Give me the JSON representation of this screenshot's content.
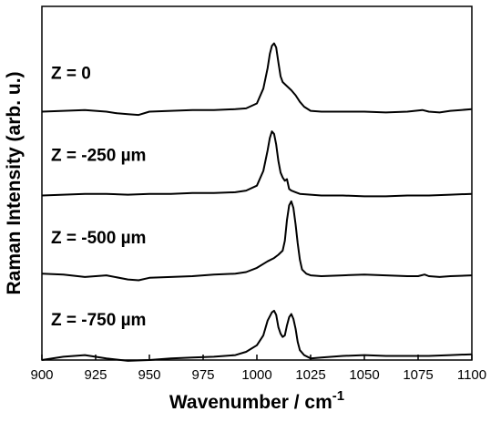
{
  "chart_data": {
    "type": "line",
    "title": "",
    "xlabel": "Wavenumber / cm",
    "xlabel_superscript": "-1",
    "ylabel": "Raman Intensity (arb. u.)",
    "xlim": [
      900,
      1100
    ],
    "xticks": [
      900,
      925,
      950,
      975,
      1000,
      1025,
      1050,
      1075,
      1100
    ],
    "ylim": [
      0,
      4.3
    ],
    "y_ticks_labeled": false,
    "grid": false,
    "series": [
      {
        "name": "Z = 0",
        "offset": 3,
        "points": [
          [
            900,
            0.02
          ],
          [
            910,
            0.03
          ],
          [
            920,
            0.04
          ],
          [
            930,
            0.02
          ],
          [
            935,
            0.0
          ],
          [
            940,
            -0.01
          ],
          [
            945,
            -0.02
          ],
          [
            950,
            0.02
          ],
          [
            960,
            0.03
          ],
          [
            970,
            0.04
          ],
          [
            980,
            0.04
          ],
          [
            990,
            0.05
          ],
          [
            995,
            0.06
          ],
          [
            1000,
            0.12
          ],
          [
            1003,
            0.3
          ],
          [
            1005,
            0.55
          ],
          [
            1006,
            0.72
          ],
          [
            1007,
            0.82
          ],
          [
            1008,
            0.85
          ],
          [
            1009,
            0.8
          ],
          [
            1010,
            0.62
          ],
          [
            1011,
            0.45
          ],
          [
            1012,
            0.38
          ],
          [
            1014,
            0.33
          ],
          [
            1016,
            0.28
          ],
          [
            1018,
            0.22
          ],
          [
            1020,
            0.14
          ],
          [
            1022,
            0.08
          ],
          [
            1025,
            0.03
          ],
          [
            1030,
            0.02
          ],
          [
            1040,
            0.02
          ],
          [
            1050,
            0.02
          ],
          [
            1060,
            0.01
          ],
          [
            1070,
            0.02
          ],
          [
            1077,
            0.04
          ],
          [
            1080,
            0.02
          ],
          [
            1085,
            0.01
          ],
          [
            1090,
            0.03
          ],
          [
            1095,
            0.04
          ],
          [
            1100,
            0.05
          ]
        ]
      },
      {
        "name": "Z = -250 µm",
        "offset": 2,
        "points": [
          [
            900,
            0.0
          ],
          [
            910,
            0.01
          ],
          [
            920,
            0.02
          ],
          [
            930,
            0.02
          ],
          [
            940,
            0.01
          ],
          [
            950,
            0.02
          ],
          [
            960,
            0.02
          ],
          [
            970,
            0.03
          ],
          [
            980,
            0.03
          ],
          [
            990,
            0.04
          ],
          [
            995,
            0.06
          ],
          [
            1000,
            0.12
          ],
          [
            1003,
            0.3
          ],
          [
            1005,
            0.55
          ],
          [
            1006,
            0.7
          ],
          [
            1007,
            0.78
          ],
          [
            1008,
            0.75
          ],
          [
            1009,
            0.62
          ],
          [
            1010,
            0.42
          ],
          [
            1011,
            0.28
          ],
          [
            1012,
            0.22
          ],
          [
            1013,
            0.18
          ],
          [
            1014,
            0.2
          ],
          [
            1015,
            0.08
          ],
          [
            1016,
            0.06
          ],
          [
            1018,
            0.04
          ],
          [
            1020,
            0.02
          ],
          [
            1025,
            0.01
          ],
          [
            1030,
            0.0
          ],
          [
            1040,
            0.0
          ],
          [
            1050,
            -0.01
          ],
          [
            1060,
            -0.01
          ],
          [
            1070,
            0.0
          ],
          [
            1080,
            0.0
          ],
          [
            1090,
            0.01
          ],
          [
            1100,
            0.02
          ]
        ]
      },
      {
        "name": "Z = -500 µm",
        "offset": 1,
        "points": [
          [
            900,
            0.05
          ],
          [
            910,
            0.04
          ],
          [
            920,
            0.01
          ],
          [
            930,
            0.03
          ],
          [
            940,
            -0.02
          ],
          [
            945,
            -0.03
          ],
          [
            950,
            0.0
          ],
          [
            960,
            0.01
          ],
          [
            970,
            0.02
          ],
          [
            980,
            0.04
          ],
          [
            990,
            0.05
          ],
          [
            995,
            0.07
          ],
          [
            1000,
            0.12
          ],
          [
            1005,
            0.2
          ],
          [
            1008,
            0.24
          ],
          [
            1010,
            0.28
          ],
          [
            1012,
            0.33
          ],
          [
            1013,
            0.45
          ],
          [
            1014,
            0.7
          ],
          [
            1015,
            0.88
          ],
          [
            1016,
            0.93
          ],
          [
            1017,
            0.85
          ],
          [
            1018,
            0.65
          ],
          [
            1019,
            0.42
          ],
          [
            1020,
            0.22
          ],
          [
            1021,
            0.1
          ],
          [
            1023,
            0.05
          ],
          [
            1025,
            0.03
          ],
          [
            1030,
            0.02
          ],
          [
            1040,
            0.03
          ],
          [
            1050,
            0.04
          ],
          [
            1060,
            0.03
          ],
          [
            1070,
            0.02
          ],
          [
            1075,
            0.02
          ],
          [
            1078,
            0.04
          ],
          [
            1080,
            0.02
          ],
          [
            1085,
            0.01
          ],
          [
            1090,
            0.02
          ],
          [
            1100,
            0.03
          ]
        ]
      },
      {
        "name": "Z = -750 µm",
        "offset": 0,
        "points": [
          [
            900,
            0.0
          ],
          [
            910,
            0.04
          ],
          [
            920,
            0.06
          ],
          [
            930,
            0.02
          ],
          [
            940,
            -0.01
          ],
          [
            950,
            0.0
          ],
          [
            960,
            0.02
          ],
          [
            970,
            0.03
          ],
          [
            980,
            0.04
          ],
          [
            990,
            0.06
          ],
          [
            995,
            0.1
          ],
          [
            1000,
            0.18
          ],
          [
            1003,
            0.3
          ],
          [
            1005,
            0.48
          ],
          [
            1007,
            0.58
          ],
          [
            1008,
            0.6
          ],
          [
            1009,
            0.55
          ],
          [
            1010,
            0.4
          ],
          [
            1011,
            0.32
          ],
          [
            1012,
            0.28
          ],
          [
            1013,
            0.3
          ],
          [
            1014,
            0.42
          ],
          [
            1015,
            0.52
          ],
          [
            1016,
            0.56
          ],
          [
            1017,
            0.5
          ],
          [
            1018,
            0.38
          ],
          [
            1019,
            0.22
          ],
          [
            1020,
            0.12
          ],
          [
            1022,
            0.06
          ],
          [
            1025,
            0.02
          ],
          [
            1030,
            0.03
          ],
          [
            1040,
            0.05
          ],
          [
            1050,
            0.06
          ],
          [
            1060,
            0.05
          ],
          [
            1070,
            0.05
          ],
          [
            1080,
            0.05
          ],
          [
            1090,
            0.06
          ],
          [
            1100,
            0.07
          ]
        ]
      }
    ]
  }
}
